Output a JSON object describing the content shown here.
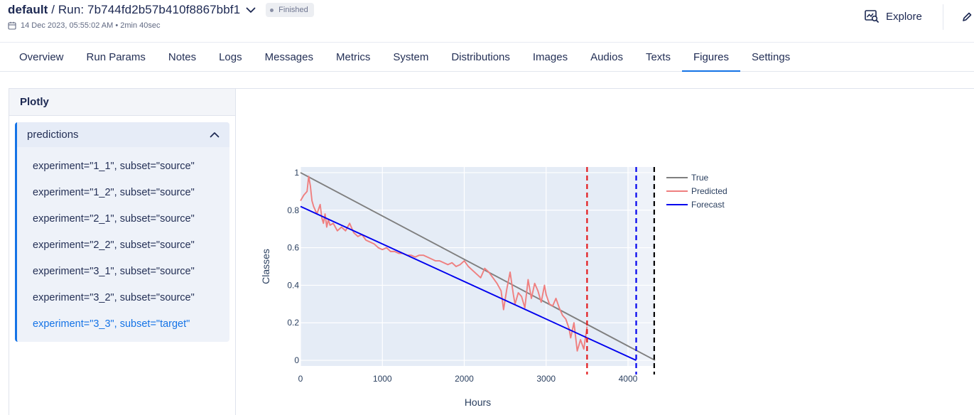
{
  "header": {
    "workspace": "default",
    "run_label": "/ Run: 7b744fd2b57b410f8867bbf1",
    "status": "Finished",
    "date": "14 Dec 2023, 05:55:02 AM",
    "duration": "2min 40sec",
    "explore_label": "Explore"
  },
  "tabs": [
    {
      "label": "Overview"
    },
    {
      "label": "Run Params"
    },
    {
      "label": "Notes"
    },
    {
      "label": "Logs"
    },
    {
      "label": "Messages"
    },
    {
      "label": "Metrics"
    },
    {
      "label": "System"
    },
    {
      "label": "Distributions"
    },
    {
      "label": "Images"
    },
    {
      "label": "Audios"
    },
    {
      "label": "Texts"
    },
    {
      "label": "Figures",
      "active": true
    },
    {
      "label": "Settings"
    }
  ],
  "sidebar": {
    "title": "Plotly",
    "group": {
      "title": "predictions",
      "items": [
        {
          "label": "experiment=\"1_1\", subset=\"source\""
        },
        {
          "label": "experiment=\"1_2\", subset=\"source\""
        },
        {
          "label": "experiment=\"2_1\", subset=\"source\""
        },
        {
          "label": "experiment=\"2_2\", subset=\"source\""
        },
        {
          "label": "experiment=\"3_1\", subset=\"source\""
        },
        {
          "label": "experiment=\"3_2\", subset=\"source\""
        },
        {
          "label": "experiment=\"3_3\", subset=\"target\"",
          "active": true
        }
      ]
    }
  },
  "colors": {
    "accent": "#1473e6",
    "plot_bg": "#e5ecf6",
    "true_line": "#7f7f7f",
    "predicted_line": "#ef7f7f",
    "forecast_line": "#0000ee",
    "vline_red": "#e31a1c",
    "vline_blue": "#0000ee",
    "vline_black": "#000000"
  },
  "chart_data": {
    "type": "line",
    "xlabel": "Hours",
    "ylabel": "Classes",
    "xlim": [
      0,
      4330
    ],
    "ylim": [
      -0.03,
      1.03
    ],
    "x_ticks": [
      0,
      1000,
      2000,
      3000,
      4000
    ],
    "y_ticks": [
      0,
      0.2,
      0.4,
      0.6,
      0.8,
      1
    ],
    "y_tick_labels": [
      "0",
      "0.2",
      "0.4",
      "0.6",
      "0.8",
      "1"
    ],
    "legend_position": "right",
    "shaded_region": [
      3990,
      4330
    ],
    "series": [
      {
        "name": "True",
        "color_key": "true_line",
        "x": [
          0,
          4330
        ],
        "y": [
          1.0,
          0.0
        ]
      },
      {
        "name": "Predicted",
        "color_key": "predicted_line",
        "x": [
          0,
          40,
          80,
          100,
          120,
          140,
          160,
          200,
          240,
          260,
          280,
          300,
          320,
          340,
          360,
          400,
          450,
          500,
          550,
          600,
          650,
          700,
          750,
          800,
          850,
          900,
          950,
          1000,
          1050,
          1100,
          1150,
          1200,
          1250,
          1300,
          1350,
          1400,
          1450,
          1500,
          1550,
          1600,
          1650,
          1700,
          1750,
          1800,
          1850,
          1900,
          1950,
          2000,
          2050,
          2100,
          2150,
          2200,
          2250,
          2300,
          2350,
          2400,
          2450,
          2480,
          2520,
          2560,
          2600,
          2620,
          2660,
          2700,
          2740,
          2780,
          2820,
          2860,
          2900,
          2940,
          2980,
          3000,
          3040,
          3080,
          3120,
          3160,
          3200,
          3240,
          3280,
          3300,
          3340,
          3380,
          3420,
          3460,
          3500
        ],
        "y": [
          0.85,
          0.88,
          0.9,
          0.98,
          0.93,
          0.85,
          0.82,
          0.78,
          0.83,
          0.76,
          0.73,
          0.78,
          0.71,
          0.75,
          0.72,
          0.73,
          0.69,
          0.71,
          0.69,
          0.73,
          0.68,
          0.66,
          0.67,
          0.64,
          0.63,
          0.62,
          0.6,
          0.59,
          0.6,
          0.58,
          0.58,
          0.57,
          0.57,
          0.56,
          0.56,
          0.55,
          0.56,
          0.56,
          0.55,
          0.54,
          0.53,
          0.53,
          0.52,
          0.51,
          0.52,
          0.5,
          0.51,
          0.53,
          0.5,
          0.48,
          0.46,
          0.44,
          0.49,
          0.47,
          0.44,
          0.41,
          0.37,
          0.27,
          0.38,
          0.47,
          0.35,
          0.3,
          0.36,
          0.34,
          0.28,
          0.43,
          0.33,
          0.41,
          0.37,
          0.31,
          0.4,
          0.35,
          0.3,
          0.29,
          0.33,
          0.28,
          0.24,
          0.22,
          0.17,
          0.12,
          0.2,
          0.05,
          0.11,
          0.06,
          0.18
        ]
      },
      {
        "name": "Forecast",
        "color_key": "forecast_line",
        "x": [
          0,
          4100
        ],
        "y": [
          0.82,
          0.0
        ]
      }
    ],
    "vlines": [
      {
        "x": 3500,
        "color_key": "vline_red"
      },
      {
        "x": 4100,
        "color_key": "vline_blue"
      },
      {
        "x": 4320,
        "color_key": "vline_black"
      }
    ]
  }
}
